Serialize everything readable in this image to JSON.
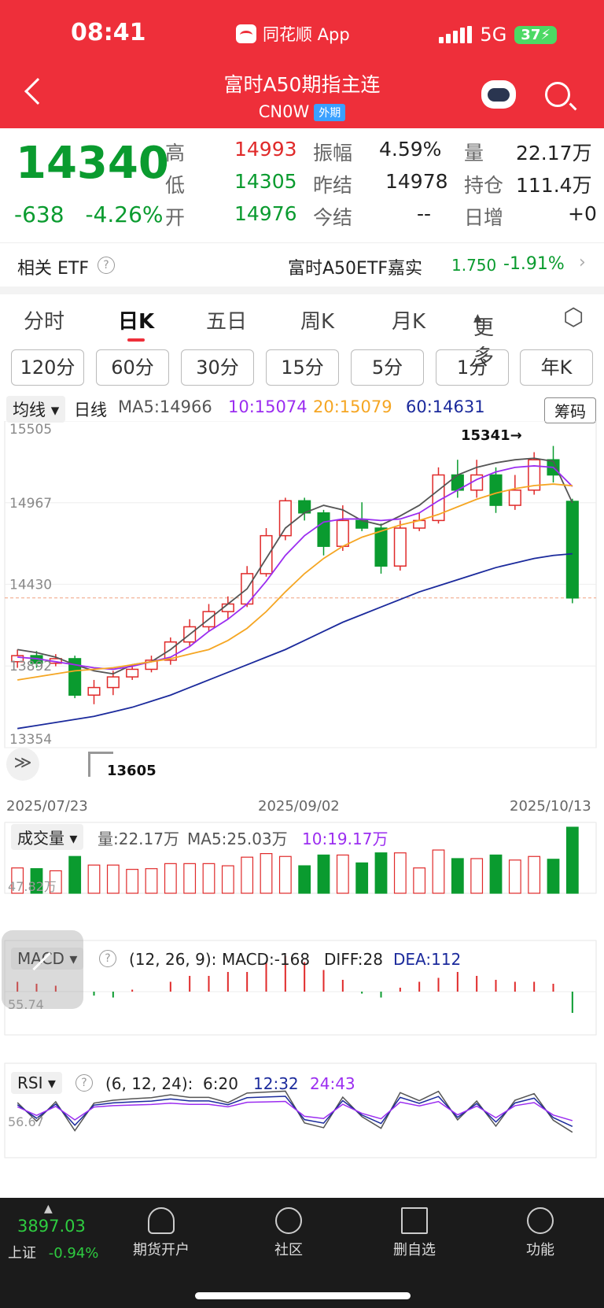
{
  "status": {
    "time": "08:41",
    "app_name": "同花顺 App",
    "network": "5G",
    "battery": "37"
  },
  "header": {
    "title": "富时A50期指主连",
    "code": "CN0W",
    "tag": "外期"
  },
  "quote": {
    "price": "14340",
    "change": "-638",
    "change_pct": "-4.26%",
    "high_label": "高",
    "high": "14993",
    "low_label": "低",
    "low": "14305",
    "open_label": "开",
    "open": "14976",
    "amp_label": "振幅",
    "amp": "4.59%",
    "prev_label": "昨结",
    "prev": "14978",
    "settle_label": "今结",
    "settle": "--",
    "vol_label": "量",
    "vol": "22.17万",
    "oi_label": "持仓",
    "oi": "111.4万",
    "inc_label": "日增",
    "inc": "+0"
  },
  "etf": {
    "label": "相关 ETF",
    "name": "富时A50ETF嘉实",
    "price": "1.750",
    "pct": "-1.91%"
  },
  "tabs": [
    "分时",
    "日K",
    "五日",
    "周K",
    "月K",
    "更多"
  ],
  "periods": [
    "120分",
    "60分",
    "30分",
    "15分",
    "5分",
    "1分",
    "年K"
  ],
  "kline": {
    "ma_toggle": "均线",
    "label": "日线",
    "ma5": "MA5:14966",
    "ma10": "10:15074",
    "ma20": "20:15079",
    "ma60": "60:14631",
    "chip_btn": "筹码",
    "high_mark": "15341→",
    "low_mark": "13605",
    "dates": [
      "2025/07/23",
      "2025/09/02",
      "2025/10/13"
    ]
  },
  "volume": {
    "toggle": "成交量",
    "vol": "量:22.17万",
    "ma5": "MA5:25.03万",
    "ma10": "10:19.17万",
    "axis": "47.82万"
  },
  "macd": {
    "toggle": "MACD",
    "params": "(12, 26, 9):",
    "macd": "MACD:-168",
    "diff": "DIFF:28",
    "dea": "DEA:112",
    "axis": "55.74"
  },
  "rsi": {
    "toggle": "RSI",
    "params": "(6, 12, 24):",
    "r6": "6:20",
    "r12": "12:32",
    "r24": "24:43",
    "axis": "56.67"
  },
  "bottom": {
    "index_value": "3897.03",
    "index_name": "上证",
    "index_pct": "-0.94%",
    "futures": "期货开户",
    "community": "社区",
    "delete": "删自选",
    "func": "功能"
  },
  "colors": {
    "up": "#e02a2a",
    "down": "#0a9b2f",
    "ma5": "#555555",
    "ma10": "#9b2df0",
    "ma20": "#f5a623",
    "ma60": "#1b2a9c"
  },
  "chart_data": {
    "type": "candlestick",
    "title": "",
    "y_axis_ticks": [
      15505,
      14967,
      14430,
      13892,
      13354
    ],
    "ylim": [
      13354,
      15505
    ],
    "x_tick_labels": [
      "2025/07/23",
      "2025/09/02",
      "2025/10/13"
    ],
    "last_close": 14340,
    "high_marked": 15341,
    "low_marked": 13605,
    "series": [
      {
        "name": "MA5",
        "values": [
          14000,
          13980,
          13950,
          13900,
          13860,
          13840,
          13900,
          13920,
          14000,
          14100,
          14200,
          14300,
          14400,
          14600,
          14800,
          14900,
          14950,
          14920,
          14850,
          14820,
          14880,
          14950,
          15050,
          15150,
          15200,
          15230,
          15250,
          15260,
          15240,
          14966
        ]
      },
      {
        "name": "MA10",
        "values": [
          13950,
          13940,
          13920,
          13900,
          13880,
          13870,
          13890,
          13920,
          13950,
          14020,
          14120,
          14200,
          14300,
          14450,
          14620,
          14750,
          14840,
          14860,
          14860,
          14850,
          14860,
          14900,
          14980,
          15050,
          15120,
          15170,
          15200,
          15210,
          15200,
          15074
        ]
      },
      {
        "name": "MA20",
        "values": [
          13800,
          13820,
          13840,
          13860,
          13870,
          13880,
          13900,
          13920,
          13940,
          13970,
          14000,
          14060,
          14140,
          14250,
          14380,
          14500,
          14600,
          14680,
          14740,
          14780,
          14820,
          14850,
          14890,
          14940,
          14990,
          15030,
          15060,
          15080,
          15090,
          15079
        ]
      },
      {
        "name": "MA60",
        "values": [
          13480,
          13500,
          13520,
          13540,
          13560,
          13590,
          13620,
          13660,
          13700,
          13750,
          13800,
          13850,
          13900,
          13950,
          14000,
          14060,
          14120,
          14180,
          14230,
          14280,
          14330,
          14380,
          14420,
          14460,
          14500,
          14540,
          14570,
          14600,
          14620,
          14631
        ]
      }
    ],
    "candles": [
      {
        "o": 13920,
        "c": 13960,
        "h": 14000,
        "l": 13880
      },
      {
        "o": 13960,
        "c": 13910,
        "h": 13990,
        "l": 13880
      },
      {
        "o": 13910,
        "c": 13940,
        "h": 13970,
        "l": 13890
      },
      {
        "o": 13940,
        "c": 13700,
        "h": 13960,
        "l": 13680
      },
      {
        "o": 13700,
        "c": 13750,
        "h": 13800,
        "l": 13640
      },
      {
        "o": 13750,
        "c": 13820,
        "h": 13860,
        "l": 13700
      },
      {
        "o": 13820,
        "c": 13870,
        "h": 13900,
        "l": 13800
      },
      {
        "o": 13870,
        "c": 13930,
        "h": 13960,
        "l": 13850
      },
      {
        "o": 13930,
        "c": 14050,
        "h": 14080,
        "l": 13900
      },
      {
        "o": 14050,
        "c": 14150,
        "h": 14200,
        "l": 14020
      },
      {
        "o": 14150,
        "c": 14250,
        "h": 14300,
        "l": 14120
      },
      {
        "o": 14250,
        "c": 14300,
        "h": 14350,
        "l": 14200
      },
      {
        "o": 14300,
        "c": 14500,
        "h": 14550,
        "l": 14280
      },
      {
        "o": 14500,
        "c": 14750,
        "h": 14800,
        "l": 14480
      },
      {
        "o": 14750,
        "c": 14980,
        "h": 15000,
        "l": 14720
      },
      {
        "o": 14980,
        "c": 14900,
        "h": 15000,
        "l": 14850
      },
      {
        "o": 14900,
        "c": 14680,
        "h": 14920,
        "l": 14620
      },
      {
        "o": 14680,
        "c": 14850,
        "h": 14950,
        "l": 14650
      },
      {
        "o": 14850,
        "c": 14800,
        "h": 14970,
        "l": 14780
      },
      {
        "o": 14800,
        "c": 14550,
        "h": 14830,
        "l": 14500
      },
      {
        "o": 14550,
        "c": 14800,
        "h": 14850,
        "l": 14520
      },
      {
        "o": 14800,
        "c": 14850,
        "h": 14900,
        "l": 14780
      },
      {
        "o": 14850,
        "c": 15150,
        "h": 15200,
        "l": 14830
      },
      {
        "o": 15150,
        "c": 15050,
        "h": 15250,
        "l": 15000
      },
      {
        "o": 15050,
        "c": 15150,
        "h": 15250,
        "l": 15000
      },
      {
        "o": 15150,
        "c": 14950,
        "h": 15200,
        "l": 14900
      },
      {
        "o": 14950,
        "c": 15050,
        "h": 15150,
        "l": 14920
      },
      {
        "o": 15050,
        "c": 15250,
        "h": 15300,
        "l": 15020
      },
      {
        "o": 15250,
        "c": 15150,
        "h": 15341,
        "l": 15100
      },
      {
        "o": 14976,
        "c": 14340,
        "h": 14993,
        "l": 14305
      }
    ]
  }
}
